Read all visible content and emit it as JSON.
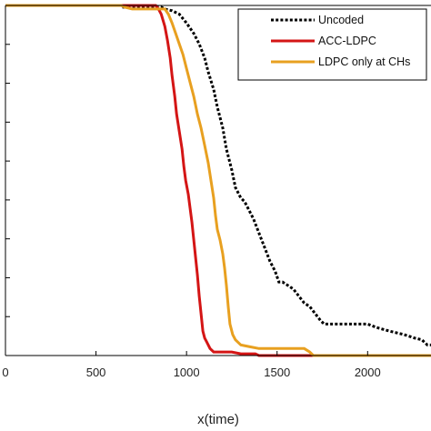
{
  "chart_data": {
    "type": "line",
    "xlabel": "x(time)",
    "xlim": [
      0,
      2350
    ],
    "ylim": [
      0,
      1
    ],
    "x_ticks": [
      "0",
      "500",
      "1000",
      "1500",
      "2000"
    ],
    "x_tick_values": [
      0,
      500,
      1000,
      1500,
      2000
    ],
    "y_tick_count": 9,
    "grid": false,
    "legend_position": "top-right",
    "series": [
      {
        "name": "Uncoded",
        "color": "#000000",
        "style": "dotted",
        "points": [
          [
            0,
            1.0
          ],
          [
            640,
            1.0
          ],
          [
            650,
            0.995
          ],
          [
            860,
            0.995
          ],
          [
            880,
            0.99
          ],
          [
            920,
            0.985
          ],
          [
            960,
            0.975
          ],
          [
            1000,
            0.95
          ],
          [
            1040,
            0.92
          ],
          [
            1070,
            0.89
          ],
          [
            1100,
            0.85
          ],
          [
            1120,
            0.81
          ],
          [
            1150,
            0.76
          ],
          [
            1170,
            0.71
          ],
          [
            1200,
            0.65
          ],
          [
            1220,
            0.59
          ],
          [
            1250,
            0.53
          ],
          [
            1270,
            0.48
          ],
          [
            1300,
            0.45
          ],
          [
            1320,
            0.44
          ],
          [
            1340,
            0.42
          ],
          [
            1370,
            0.39
          ],
          [
            1400,
            0.35
          ],
          [
            1430,
            0.31
          ],
          [
            1460,
            0.27
          ],
          [
            1490,
            0.24
          ],
          [
            1510,
            0.21
          ],
          [
            1530,
            0.21
          ],
          [
            1560,
            0.2
          ],
          [
            1590,
            0.19
          ],
          [
            1620,
            0.17
          ],
          [
            1650,
            0.15
          ],
          [
            1680,
            0.14
          ],
          [
            1710,
            0.12
          ],
          [
            1740,
            0.1
          ],
          [
            1760,
            0.09
          ],
          [
            1800,
            0.09
          ],
          [
            2000,
            0.09
          ],
          [
            2050,
            0.08
          ],
          [
            2120,
            0.07
          ],
          [
            2200,
            0.06
          ],
          [
            2260,
            0.05
          ],
          [
            2300,
            0.045
          ],
          [
            2330,
            0.03
          ],
          [
            2350,
            0.03
          ]
        ]
      },
      {
        "name": "ACC-LDPC",
        "color": "#d41515",
        "style": "solid",
        "points": [
          [
            0,
            1.0
          ],
          [
            830,
            1.0
          ],
          [
            845,
            0.99
          ],
          [
            860,
            0.975
          ],
          [
            880,
            0.94
          ],
          [
            895,
            0.9
          ],
          [
            910,
            0.85
          ],
          [
            920,
            0.8
          ],
          [
            935,
            0.74
          ],
          [
            945,
            0.69
          ],
          [
            960,
            0.64
          ],
          [
            975,
            0.59
          ],
          [
            985,
            0.54
          ],
          [
            995,
            0.5
          ],
          [
            1010,
            0.46
          ],
          [
            1020,
            0.42
          ],
          [
            1030,
            0.38
          ],
          [
            1040,
            0.33
          ],
          [
            1050,
            0.28
          ],
          [
            1060,
            0.23
          ],
          [
            1070,
            0.17
          ],
          [
            1080,
            0.12
          ],
          [
            1090,
            0.07
          ],
          [
            1100,
            0.05
          ],
          [
            1110,
            0.04
          ],
          [
            1130,
            0.02
          ],
          [
            1150,
            0.01
          ],
          [
            1250,
            0.01
          ],
          [
            1300,
            0.005
          ],
          [
            1380,
            0.005
          ],
          [
            1400,
            0.0
          ],
          [
            2350,
            0.0
          ]
        ]
      },
      {
        "name": "LDPC only at CHs",
        "color": "#e8a020",
        "style": "solid",
        "points": [
          [
            0,
            1.0
          ],
          [
            640,
            1.0
          ],
          [
            660,
            0.995
          ],
          [
            700,
            0.99
          ],
          [
            730,
            0.99
          ],
          [
            760,
            0.99
          ],
          [
            880,
            0.99
          ],
          [
            900,
            0.975
          ],
          [
            920,
            0.95
          ],
          [
            940,
            0.92
          ],
          [
            960,
            0.89
          ],
          [
            980,
            0.86
          ],
          [
            1000,
            0.82
          ],
          [
            1020,
            0.78
          ],
          [
            1040,
            0.74
          ],
          [
            1060,
            0.69
          ],
          [
            1080,
            0.65
          ],
          [
            1100,
            0.6
          ],
          [
            1120,
            0.55
          ],
          [
            1135,
            0.5
          ],
          [
            1150,
            0.45
          ],
          [
            1160,
            0.4
          ],
          [
            1170,
            0.36
          ],
          [
            1185,
            0.33
          ],
          [
            1200,
            0.29
          ],
          [
            1210,
            0.25
          ],
          [
            1220,
            0.2
          ],
          [
            1230,
            0.14
          ],
          [
            1240,
            0.09
          ],
          [
            1255,
            0.06
          ],
          [
            1270,
            0.045
          ],
          [
            1300,
            0.03
          ],
          [
            1350,
            0.025
          ],
          [
            1400,
            0.02
          ],
          [
            1500,
            0.02
          ],
          [
            1600,
            0.02
          ],
          [
            1650,
            0.02
          ],
          [
            1680,
            0.01
          ],
          [
            1700,
            0.0
          ],
          [
            2350,
            0.0
          ]
        ]
      }
    ]
  }
}
